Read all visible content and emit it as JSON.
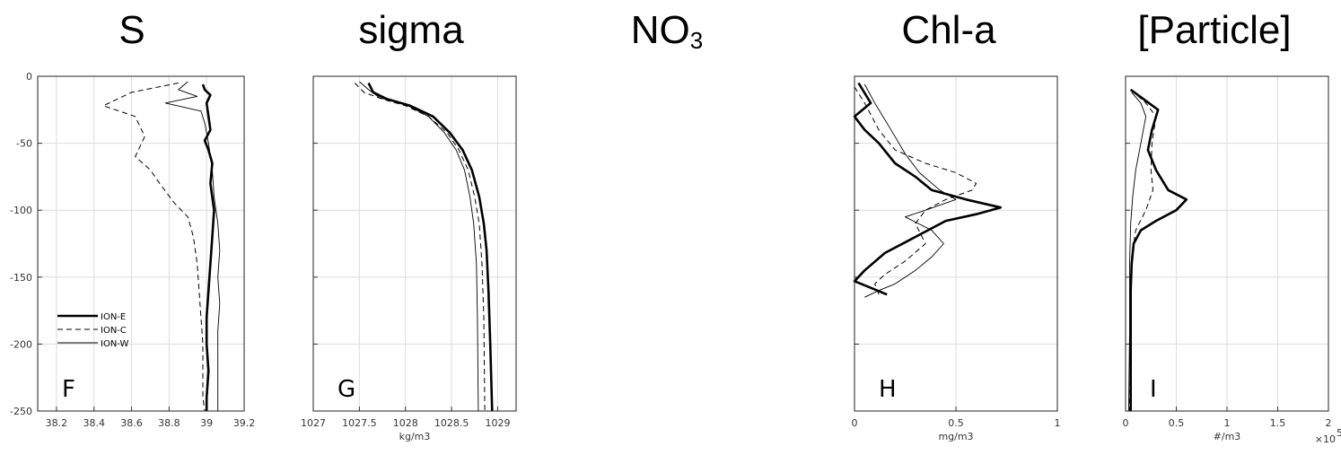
{
  "panel_titles": {
    "s": "S",
    "sigma": "sigma",
    "no3_main": "NO",
    "no3_sub": "3",
    "chl": "Chl-a",
    "particle": "[Particle]"
  },
  "chart_data": [
    {
      "id": "F",
      "type": "line",
      "title": "S",
      "panel_letter": "F",
      "xlabel": "",
      "xlim": [
        38.1,
        39.2
      ],
      "ylim": [
        -250,
        0
      ],
      "xticks": [
        38.2,
        38.4,
        38.6,
        38.8,
        39,
        39.2
      ],
      "xtick_labels": [
        "38.2",
        "38.4",
        "38.6",
        "38.8",
        "39",
        "39.2"
      ],
      "yticks": [
        0,
        -50,
        -100,
        -150,
        -200,
        -250
      ],
      "ytick_labels": [
        "0",
        "-50",
        "-100",
        "-150",
        "-200",
        "-250"
      ],
      "grid": true,
      "legend": "bottom-left",
      "series": [
        {
          "name": "ION-E",
          "style": "thick",
          "points": [
            [
              38.98,
              -6
            ],
            [
              38.99,
              -10
            ],
            [
              39.02,
              -14
            ],
            [
              39.0,
              -20
            ],
            [
              39.01,
              -30
            ],
            [
              39.02,
              -40
            ],
            [
              38.99,
              -48
            ],
            [
              39.01,
              -55
            ],
            [
              39.03,
              -65
            ],
            [
              39.02,
              -80
            ],
            [
              39.04,
              -100
            ],
            [
              39.03,
              -120
            ],
            [
              39.02,
              -140
            ],
            [
              39.01,
              -160
            ],
            [
              39.0,
              -180
            ],
            [
              39.0,
              -200
            ],
            [
              39.01,
              -220
            ],
            [
              39.0,
              -240
            ],
            [
              39.0,
              -250
            ]
          ]
        },
        {
          "name": "ION-C",
          "style": "dashed",
          "points": [
            [
              38.85,
              -5
            ],
            [
              38.6,
              -12
            ],
            [
              38.45,
              -22
            ],
            [
              38.62,
              -30
            ],
            [
              38.67,
              -45
            ],
            [
              38.62,
              -60
            ],
            [
              38.7,
              -70
            ],
            [
              38.75,
              -80
            ],
            [
              38.83,
              -95
            ],
            [
              38.9,
              -105
            ],
            [
              38.93,
              -120
            ],
            [
              38.95,
              -140
            ],
            [
              38.96,
              -160
            ],
            [
              38.97,
              -180
            ],
            [
              38.98,
              -200
            ],
            [
              38.98,
              -220
            ],
            [
              38.98,
              -240
            ],
            [
              38.99,
              -250
            ]
          ]
        },
        {
          "name": "ION-W",
          "style": "thin",
          "points": [
            [
              38.9,
              -4
            ],
            [
              38.85,
              -10
            ],
            [
              38.95,
              -15
            ],
            [
              38.78,
              -20
            ],
            [
              38.97,
              -26
            ],
            [
              38.99,
              -35
            ],
            [
              39.01,
              -50
            ],
            [
              39.03,
              -70
            ],
            [
              39.04,
              -90
            ],
            [
              39.06,
              -110
            ],
            [
              39.07,
              -130
            ],
            [
              39.06,
              -150
            ],
            [
              39.07,
              -170
            ],
            [
              39.06,
              -190
            ],
            [
              39.06,
              -210
            ],
            [
              39.06,
              -230
            ],
            [
              39.06,
              -250
            ]
          ]
        }
      ]
    },
    {
      "id": "G",
      "type": "line",
      "title": "sigma",
      "panel_letter": "G",
      "xlabel": "kg/m3",
      "xlim": [
        1027,
        1029.2
      ],
      "ylim": [
        -250,
        0
      ],
      "xticks": [
        1027,
        1027.5,
        1028,
        1028.5,
        1029
      ],
      "xtick_labels": [
        "1027",
        "1027.5",
        "1028",
        "1028.5",
        "1029"
      ],
      "yticks": [
        0,
        -50,
        -100,
        -150,
        -200,
        -250
      ],
      "ytick_labels": [],
      "grid": true,
      "series": [
        {
          "name": "ION-E",
          "style": "thick",
          "points": [
            [
              1027.6,
              -5
            ],
            [
              1027.65,
              -12
            ],
            [
              1027.8,
              -17
            ],
            [
              1028.05,
              -22
            ],
            [
              1028.3,
              -30
            ],
            [
              1028.48,
              -42
            ],
            [
              1028.62,
              -55
            ],
            [
              1028.72,
              -70
            ],
            [
              1028.8,
              -90
            ],
            [
              1028.85,
              -110
            ],
            [
              1028.88,
              -130
            ],
            [
              1028.9,
              -160
            ],
            [
              1028.92,
              -200
            ],
            [
              1028.94,
              -250
            ]
          ]
        },
        {
          "name": "ION-C",
          "style": "dashed",
          "points": [
            [
              1027.45,
              -5
            ],
            [
              1027.55,
              -12
            ],
            [
              1027.75,
              -17
            ],
            [
              1028.0,
              -22
            ],
            [
              1028.25,
              -30
            ],
            [
              1028.45,
              -42
            ],
            [
              1028.58,
              -55
            ],
            [
              1028.68,
              -70
            ],
            [
              1028.75,
              -90
            ],
            [
              1028.8,
              -110
            ],
            [
              1028.83,
              -140
            ],
            [
              1028.85,
              -180
            ],
            [
              1028.86,
              -250
            ]
          ]
        },
        {
          "name": "ION-W",
          "style": "thin",
          "points": [
            [
              1027.5,
              -4
            ],
            [
              1027.6,
              -10
            ],
            [
              1027.72,
              -16
            ],
            [
              1028.0,
              -21
            ],
            [
              1028.25,
              -30
            ],
            [
              1028.42,
              -42
            ],
            [
              1028.55,
              -55
            ],
            [
              1028.64,
              -70
            ],
            [
              1028.7,
              -90
            ],
            [
              1028.74,
              -110
            ],
            [
              1028.77,
              -140
            ],
            [
              1028.78,
              -180
            ],
            [
              1028.79,
              -250
            ]
          ]
        }
      ]
    },
    {
      "id": "H",
      "type": "line",
      "title": "Chl-a",
      "panel_letter": "H",
      "xlabel": "mg/m3",
      "xlim": [
        0,
        1
      ],
      "ylim": [
        -250,
        0
      ],
      "xticks": [
        0,
        0.5,
        1
      ],
      "xtick_labels": [
        "0",
        "0.5",
        "1"
      ],
      "yticks": [
        0,
        -50,
        -100,
        -150,
        -200,
        -250
      ],
      "ytick_labels": [],
      "grid": true,
      "series": [
        {
          "name": "ION-E",
          "style": "thick",
          "points": [
            [
              0.02,
              -5
            ],
            [
              0.08,
              -20
            ],
            [
              0.0,
              -30
            ],
            [
              0.05,
              -40
            ],
            [
              0.12,
              -50
            ],
            [
              0.2,
              -65
            ],
            [
              0.3,
              -75
            ],
            [
              0.38,
              -85
            ],
            [
              0.55,
              -92
            ],
            [
              0.72,
              -98
            ],
            [
              0.6,
              -103
            ],
            [
              0.45,
              -108
            ],
            [
              0.3,
              -120
            ],
            [
              0.15,
              -132
            ],
            [
              0.05,
              -145
            ],
            [
              0.0,
              -153
            ],
            [
              0.08,
              -158
            ],
            [
              0.16,
              -163
            ]
          ]
        },
        {
          "name": "ION-C",
          "style": "dashed",
          "points": [
            [
              0.0,
              -8
            ],
            [
              0.05,
              -20
            ],
            [
              0.12,
              -40
            ],
            [
              0.2,
              -55
            ],
            [
              0.35,
              -65
            ],
            [
              0.5,
              -72
            ],
            [
              0.6,
              -80
            ],
            [
              0.58,
              -85
            ],
            [
              0.45,
              -92
            ],
            [
              0.35,
              -100
            ],
            [
              0.3,
              -110
            ],
            [
              0.35,
              -125
            ],
            [
              0.25,
              -138
            ],
            [
              0.15,
              -148
            ],
            [
              0.1,
              -155
            ],
            [
              0.12,
              -163
            ]
          ]
        },
        {
          "name": "ION-W",
          "style": "thin",
          "points": [
            [
              0.05,
              -6
            ],
            [
              0.1,
              -20
            ],
            [
              0.18,
              -40
            ],
            [
              0.25,
              -58
            ],
            [
              0.32,
              -72
            ],
            [
              0.42,
              -85
            ],
            [
              0.5,
              -92
            ],
            [
              0.35,
              -100
            ],
            [
              0.25,
              -105
            ],
            [
              0.38,
              -115
            ],
            [
              0.44,
              -125
            ],
            [
              0.38,
              -135
            ],
            [
              0.3,
              -145
            ],
            [
              0.2,
              -155
            ],
            [
              0.12,
              -160
            ],
            [
              0.05,
              -165
            ]
          ]
        }
      ]
    },
    {
      "id": "I",
      "type": "line",
      "title": "[Particle]",
      "panel_letter": "I",
      "xlabel": "#/m3",
      "xscale_label": "×10",
      "xscale_exp": "5",
      "xlim": [
        0,
        2
      ],
      "ylim": [
        -250,
        0
      ],
      "xticks": [
        0,
        0.5,
        1,
        1.5,
        2
      ],
      "xtick_labels": [
        "0",
        "0.5",
        "1",
        "1.5",
        "2"
      ],
      "yticks": [
        0,
        -50,
        -100,
        -150,
        -200,
        -250
      ],
      "ytick_labels": [],
      "grid": true,
      "series": [
        {
          "name": "ION-E",
          "style": "thick",
          "points": [
            [
              0.05,
              -10
            ],
            [
              0.32,
              -25
            ],
            [
              0.26,
              -40
            ],
            [
              0.22,
              -55
            ],
            [
              0.3,
              -70
            ],
            [
              0.42,
              -85
            ],
            [
              0.6,
              -92
            ],
            [
              0.5,
              -100
            ],
            [
              0.3,
              -108
            ],
            [
              0.15,
              -115
            ],
            [
              0.08,
              -125
            ],
            [
              0.06,
              -140
            ],
            [
              0.05,
              -160
            ],
            [
              0.05,
              -200
            ],
            [
              0.05,
              -250
            ]
          ]
        },
        {
          "name": "ION-C",
          "style": "dashed",
          "points": [
            [
              0.05,
              -10
            ],
            [
              0.2,
              -20
            ],
            [
              0.3,
              -30
            ],
            [
              0.26,
              -50
            ],
            [
              0.25,
              -70
            ],
            [
              0.27,
              -85
            ],
            [
              0.2,
              -100
            ],
            [
              0.1,
              -115
            ],
            [
              0.06,
              -135
            ],
            [
              0.05,
              -170
            ],
            [
              0.04,
              -250
            ]
          ]
        },
        {
          "name": "ION-W",
          "style": "thin",
          "points": [
            [
              0.06,
              -12
            ],
            [
              0.15,
              -20
            ],
            [
              0.2,
              -30
            ],
            [
              0.15,
              -50
            ],
            [
              0.1,
              -70
            ],
            [
              0.07,
              -90
            ],
            [
              0.05,
              -110
            ],
            [
              0.04,
              -140
            ],
            [
              0.04,
              -190
            ],
            [
              0.03,
              -250
            ]
          ]
        }
      ]
    }
  ]
}
